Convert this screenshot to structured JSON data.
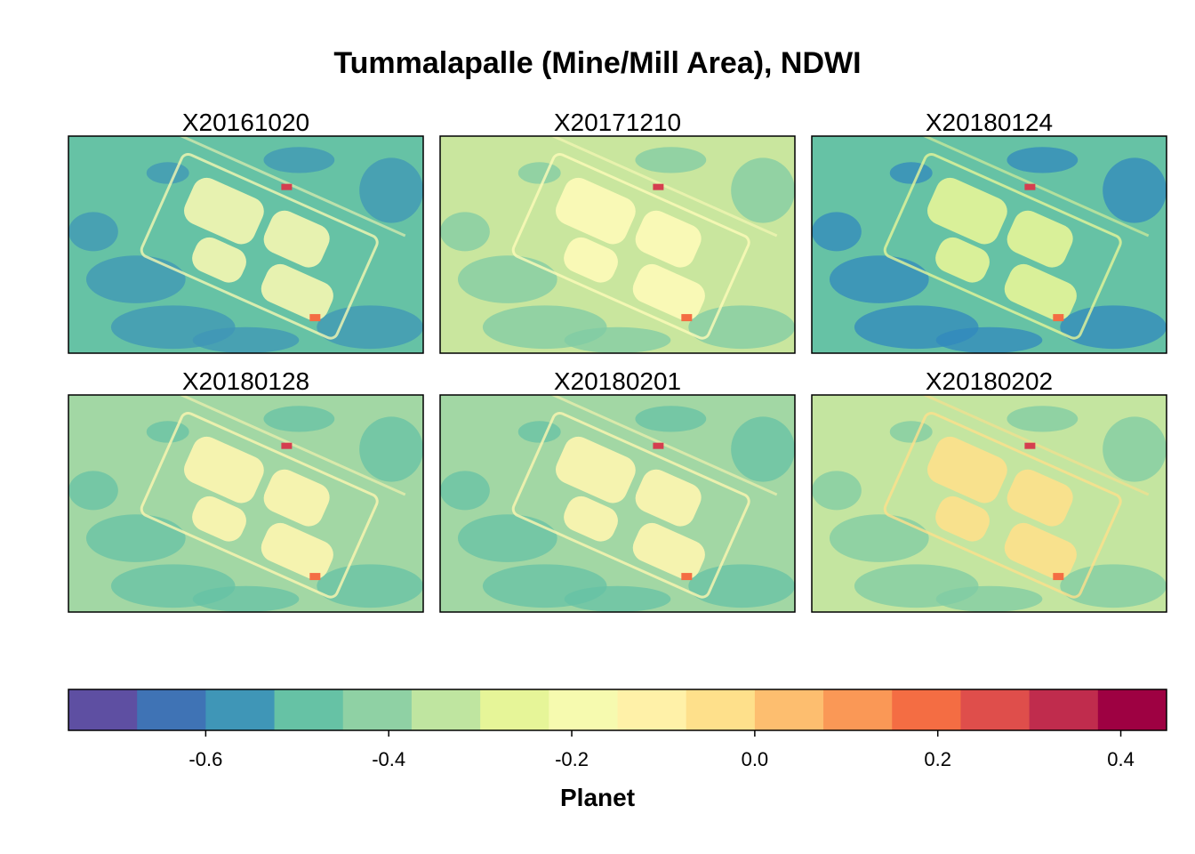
{
  "chart_data": {
    "type": "heatmap",
    "title": "Tummalapalle (Mine/Mill Area), NDWI",
    "panels": [
      {
        "label": "X20161020",
        "background": "#66c2a5",
        "shadow": "#3f96b7",
        "highlight": "#f5f7b1"
      },
      {
        "label": "X20171210",
        "background": "#c9e69e",
        "shadow": "#7fcba4",
        "highlight": "#fefbb8"
      },
      {
        "label": "X20180124",
        "background": "#66c2a5",
        "shadow": "#3288bd",
        "highlight": "#e6f598"
      },
      {
        "label": "X20180128",
        "background": "#a2d7a4",
        "shadow": "#66c2a5",
        "highlight": "#fef6b0"
      },
      {
        "label": "X20180201",
        "background": "#a2d7a4",
        "shadow": "#66c2a5",
        "highlight": "#fef6b0"
      },
      {
        "label": "X20180202",
        "background": "#c4e5a0",
        "shadow": "#7fcba4",
        "highlight": "#fee08b"
      }
    ],
    "legend": {
      "label": "Planet",
      "range": [
        -0.75,
        0.45
      ],
      "breaks": [
        -0.75,
        -0.675,
        -0.6,
        -0.525,
        -0.45,
        -0.375,
        -0.3,
        -0.225,
        -0.15,
        -0.075,
        0.0,
        0.075,
        0.15,
        0.225,
        0.3,
        0.375,
        0.45
      ],
      "colors": [
        "#5e4fa2",
        "#3f73b5",
        "#3f96b7",
        "#66c2a5",
        "#8fd1a4",
        "#bfe5a0",
        "#e6f598",
        "#f6faaf",
        "#fff1a8",
        "#fee08b",
        "#fdbe6f",
        "#fa9856",
        "#f46d43",
        "#df4e4b",
        "#c02c4d",
        "#9e0142"
      ],
      "ticks": [
        -0.6,
        -0.4,
        -0.2,
        0.0,
        0.2,
        0.4
      ],
      "tick_labels": [
        "-0.6",
        "-0.4",
        "-0.2",
        "0.0",
        "0.2",
        "0.4"
      ],
      "placement": "bottom"
    }
  }
}
